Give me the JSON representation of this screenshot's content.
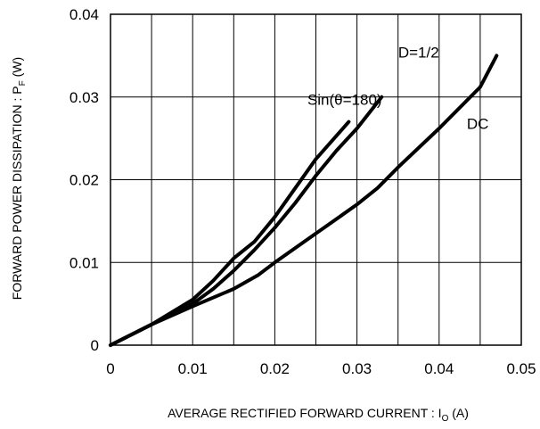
{
  "chart_data": {
    "type": "line",
    "title": "",
    "xlabel_main": "AVERAGE RECTIFIED FORWARD CURRENT : I",
    "xlabel_sub": "O",
    "xlabel_tail": " (A)",
    "ylabel_main": "FORWARD POWER DISSIPATION : P",
    "ylabel_sub": "F",
    "ylabel_tail": " (W)",
    "xlim": [
      0,
      0.05
    ],
    "ylim": [
      0,
      0.04
    ],
    "x_ticks": [
      0,
      0.01,
      0.02,
      0.03,
      0.04,
      0.05
    ],
    "x_tick_labels": [
      "0",
      "0.01",
      "0.02",
      "0.03",
      "0.04",
      "0.05"
    ],
    "y_ticks": [
      0,
      0.01,
      0.02,
      0.03,
      0.04
    ],
    "y_tick_labels": [
      "0",
      "0.01",
      "0.02",
      "0.03",
      "0.04"
    ],
    "x_minor_step": 0.005,
    "grid": true,
    "series": [
      {
        "name": "Sin(θ=180)",
        "points": [
          [
            0,
            0
          ],
          [
            0.005,
            0.0025
          ],
          [
            0.01,
            0.0055
          ],
          [
            0.0125,
            0.0078
          ],
          [
            0.015,
            0.0105
          ],
          [
            0.0175,
            0.0125
          ],
          [
            0.02,
            0.0155
          ],
          [
            0.0225,
            0.019
          ],
          [
            0.025,
            0.0225
          ],
          [
            0.0275,
            0.0253
          ],
          [
            0.029,
            0.027
          ]
        ]
      },
      {
        "name": "D=1/2",
        "points": [
          [
            0,
            0
          ],
          [
            0.005,
            0.0025
          ],
          [
            0.01,
            0.005
          ],
          [
            0.0125,
            0.0068
          ],
          [
            0.015,
            0.009
          ],
          [
            0.0175,
            0.0115
          ],
          [
            0.02,
            0.0142
          ],
          [
            0.0225,
            0.0172
          ],
          [
            0.025,
            0.0205
          ],
          [
            0.0275,
            0.0235
          ],
          [
            0.03,
            0.0262
          ],
          [
            0.033,
            0.03
          ]
        ]
      },
      {
        "name": "DC",
        "points": [
          [
            0,
            0
          ],
          [
            0.005,
            0.0025
          ],
          [
            0.01,
            0.0047
          ],
          [
            0.015,
            0.0068
          ],
          [
            0.018,
            0.0085
          ],
          [
            0.02,
            0.01
          ],
          [
            0.025,
            0.0135
          ],
          [
            0.03,
            0.017
          ],
          [
            0.0325,
            0.019
          ],
          [
            0.035,
            0.0215
          ],
          [
            0.04,
            0.0262
          ],
          [
            0.045,
            0.0312
          ],
          [
            0.047,
            0.035
          ]
        ]
      }
    ],
    "annotations": [
      {
        "text": "Sin(θ=180)",
        "x": 0.0285,
        "y": 0.0297
      },
      {
        "text": "D=1/2",
        "x": 0.0375,
        "y": 0.0354
      },
      {
        "text": "DC",
        "x": 0.0447,
        "y": 0.0268
      }
    ]
  }
}
